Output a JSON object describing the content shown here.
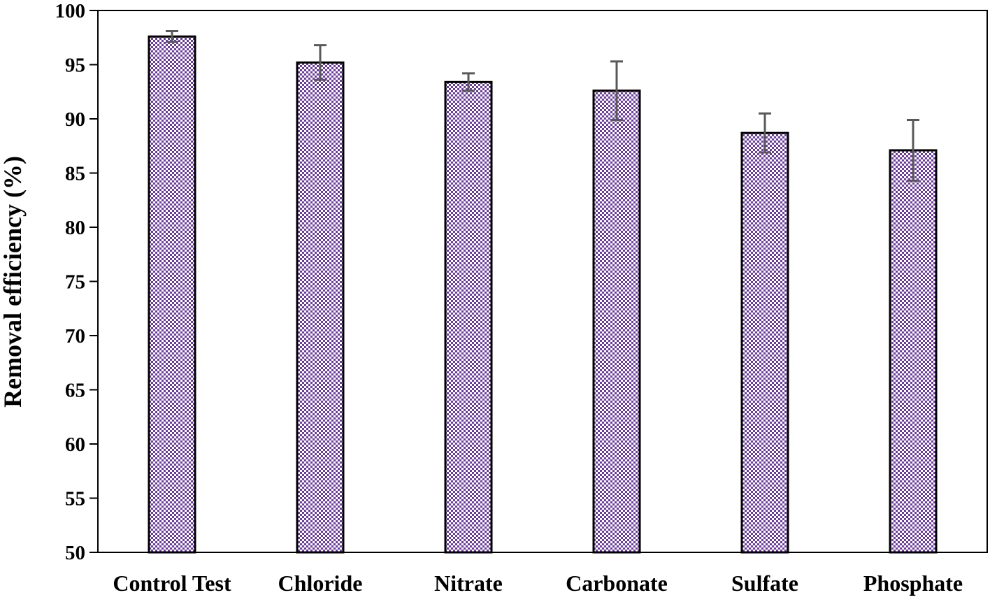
{
  "chart_data": {
    "type": "bar",
    "title": "",
    "xlabel": "",
    "ylabel": "Removal efficiency (%)",
    "categories": [
      "Control Test",
      "Chloride",
      "Nitrate",
      "Carbonate",
      "Sulfate",
      "Phosphate"
    ],
    "series": [
      {
        "values": [
          97.6,
          95.2,
          93.4,
          92.6,
          88.7,
          87.1
        ],
        "errors": [
          0.5,
          1.6,
          0.8,
          2.7,
          1.8,
          2.8
        ]
      }
    ],
    "ylim": [
      50,
      100
    ],
    "yticks": [
      "50",
      "55",
      "60",
      "65",
      "70",
      "75",
      "80",
      "85",
      "90",
      "95",
      "100"
    ],
    "grid": false,
    "legend": "none",
    "colors": {
      "bar_pattern_fg": "#6a3d9a",
      "bar_pattern_bg": "#ffffff",
      "bar_outline": "#000000",
      "error_bar": "#595959",
      "axis": "#000000"
    }
  }
}
